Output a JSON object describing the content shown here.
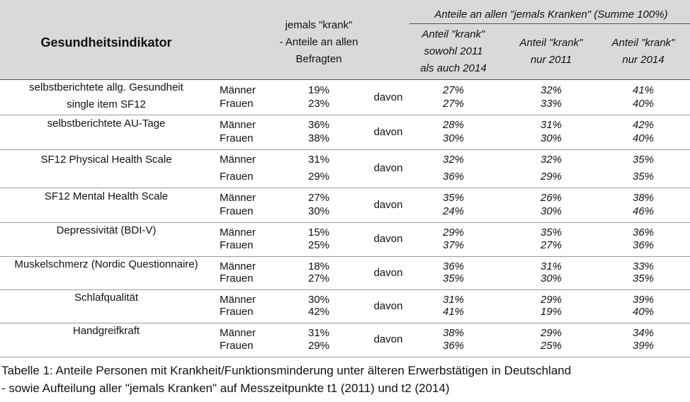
{
  "table": {
    "header": {
      "indicator": "Gesundheitsindikator",
      "share_all": [
        "jemals \"krank\"",
        "- Anteile an allen",
        "Befragten"
      ],
      "group": "Anteile an allen \"jemals Kranken\" (Summe 100%)",
      "columns": [
        [
          "Anteil \"krank\"",
          "sowohl 2011",
          "als auch 2014"
        ],
        [
          "Anteil \"krank\"",
          "nur 2011"
        ],
        [
          "Anteil \"krank\"",
          "nur 2014"
        ]
      ]
    },
    "rows": [
      {
        "indicator": [
          "selbstberichtete allg. Gesundheit",
          "single item SF12"
        ],
        "davon": "davon",
        "sub": [
          [
            "Männer",
            "19%",
            "27%",
            "32%",
            "41%"
          ],
          [
            "Frauen",
            "23%",
            "27%",
            "33%",
            "40%"
          ]
        ]
      },
      {
        "indicator": [
          "selbstberichtete AU-Tage"
        ],
        "davon": "davon",
        "sub": [
          [
            "Männer",
            "36%",
            "28%",
            "31%",
            "42%"
          ],
          [
            "Frauen",
            "38%",
            "30%",
            "30%",
            "40%"
          ]
        ]
      },
      {
        "indicator": [
          "SF12 Physical Health Scale"
        ],
        "davon": "davon",
        "sub": [
          [
            "Männer",
            "31%",
            "32%",
            "32%",
            "35%"
          ],
          [
            "Frauen",
            "29%",
            "36%",
            "29%",
            "35%"
          ]
        ]
      },
      {
        "indicator": [
          "SF12 Mental Health Scale"
        ],
        "davon": "davon",
        "sub": [
          [
            "Männer",
            "27%",
            "35%",
            "26%",
            "38%"
          ],
          [
            "Frauen",
            "30%",
            "24%",
            "30%",
            "46%"
          ]
        ]
      },
      {
        "indicator": [
          "Depressivität (BDI-V)"
        ],
        "davon": "davon",
        "sub": [
          [
            "Männer",
            "15%",
            "29%",
            "35%",
            "36%"
          ],
          [
            "Frauen",
            "25%",
            "37%",
            "27%",
            "36%"
          ]
        ]
      },
      {
        "indicator": [
          "Muskelschmerz (Nordic Questionnaire)"
        ],
        "davon": "davon",
        "sub": [
          [
            "Männer",
            "18%",
            "36%",
            "31%",
            "33%"
          ],
          [
            "Frauen",
            "27%",
            "35%",
            "30%",
            "35%"
          ]
        ]
      },
      {
        "indicator": [
          "Schlafqualität"
        ],
        "davon": "davon",
        "sub": [
          [
            "Männer",
            "30%",
            "31%",
            "29%",
            "39%"
          ],
          [
            "Frauen",
            "42%",
            "41%",
            "19%",
            "40%"
          ]
        ]
      },
      {
        "indicator": [
          "Handgreifkraft"
        ],
        "davon": "davon",
        "sub": [
          [
            "Männer",
            "31%",
            "38%",
            "29%",
            "34%"
          ],
          [
            "Frauen",
            "29%",
            "36%",
            "25%",
            "39%"
          ]
        ]
      }
    ],
    "caption": [
      "Tabelle 1: Anteile Personen mit Krankheit/Funktionsminderung unter älteren Erwerbstätigen in Deutschland",
      "- sowie Aufteilung aller \"jemals Kranken\" auf Messzeitpunkte t1 (2011) und t2 (2014)"
    ]
  }
}
